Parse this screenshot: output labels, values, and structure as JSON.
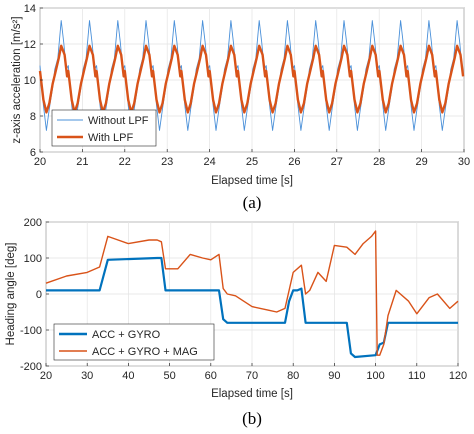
{
  "chart_data": [
    {
      "type": "line",
      "caption": "(a)",
      "xlabel": "Elapsed time [s]",
      "ylabel": "z-axis acceleration [m/s²]",
      "xlim": [
        20,
        30
      ],
      "ylim": [
        6,
        14
      ],
      "xticks": [
        20,
        21,
        22,
        23,
        24,
        25,
        26,
        27,
        28,
        29,
        30
      ],
      "yticks": [
        6,
        8,
        10,
        12,
        14
      ],
      "grid": true,
      "legend_position": "bottom-left",
      "series": [
        {
          "name": "Without LPF",
          "color": "#4a90d9",
          "period_s": 0.667,
          "x": [
            20,
            20.08,
            20.15,
            20.22,
            20.3,
            20.35,
            20.42,
            20.5,
            20.56,
            20.62
          ],
          "y": [
            10.8,
            8.6,
            7.2,
            8.4,
            9.6,
            10.6,
            11.2,
            13.3,
            12.1,
            10.6
          ]
        },
        {
          "name": "With LPF",
          "color": "#d95319",
          "period_s": 0.667,
          "x": [
            20,
            20.08,
            20.15,
            20.22,
            20.3,
            20.36,
            20.44,
            20.5,
            20.58,
            20.64
          ],
          "y": [
            10.5,
            8.9,
            8.2,
            8.7,
            9.8,
            10.4,
            11.2,
            11.9,
            11.4,
            10.2
          ]
        }
      ]
    },
    {
      "type": "line",
      "caption": "(b)",
      "xlabel": "Elapsed time [s]",
      "ylabel": "Heading angle [deg]",
      "xlim": [
        20,
        120
      ],
      "ylim": [
        -200,
        200
      ],
      "xticks": [
        20,
        30,
        40,
        50,
        60,
        70,
        80,
        90,
        100,
        110,
        120
      ],
      "yticks": [
        -200,
        -100,
        0,
        100,
        200
      ],
      "grid": true,
      "legend_position": "bottom-left",
      "series": [
        {
          "name": "ACC + GYRO",
          "color": "#0072bd",
          "x": [
            20,
            33,
            35,
            47,
            48,
            49,
            62,
            63,
            64,
            65,
            74,
            76,
            78,
            79,
            80,
            81,
            82,
            83,
            84,
            93,
            94,
            95,
            100,
            101,
            102,
            103,
            120
          ],
          "y": [
            10,
            10,
            95,
            100,
            100,
            10,
            10,
            -70,
            -80,
            -80,
            -80,
            -80,
            -80,
            -20,
            10,
            10,
            15,
            -80,
            -80,
            -80,
            -165,
            -175,
            -170,
            -140,
            -135,
            -80,
            -80
          ]
        },
        {
          "name": "ACC + GYRO + MAG",
          "color": "#d95319",
          "x": [
            20,
            25,
            30,
            33,
            35,
            40,
            45,
            47,
            48,
            49,
            52,
            55,
            58,
            60,
            62,
            63,
            64,
            66,
            70,
            74,
            76,
            78,
            80,
            82,
            83,
            84,
            86,
            88,
            90,
            93,
            95,
            97,
            99,
            100,
            100.4,
            101,
            102,
            103,
            105,
            108,
            110,
            113,
            115,
            118,
            120
          ],
          "y": [
            30,
            50,
            60,
            75,
            160,
            140,
            150,
            150,
            145,
            70,
            70,
            110,
            100,
            95,
            110,
            15,
            0,
            -5,
            -35,
            -45,
            -50,
            -40,
            60,
            80,
            0,
            10,
            60,
            35,
            135,
            130,
            110,
            140,
            160,
            175,
            -170,
            -170,
            -140,
            -60,
            10,
            -20,
            -55,
            -10,
            0,
            -40,
            -20
          ]
        }
      ]
    }
  ]
}
